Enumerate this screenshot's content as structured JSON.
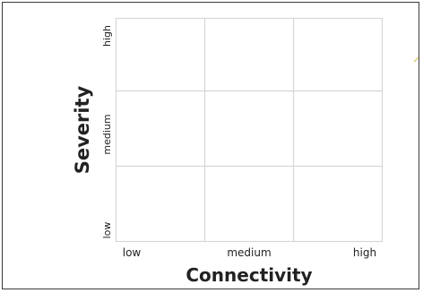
{
  "diagram": {
    "rows": 3,
    "cols": 3,
    "y_axis": {
      "title": "Severity",
      "ticks": [
        "high",
        "medium",
        "low"
      ]
    },
    "x_axis": {
      "title": "Connectivity",
      "ticks": [
        "low",
        "medium",
        "high"
      ]
    },
    "colors": {
      "frame_border": "#3a3a3a",
      "grid_line": "#d6d6d6",
      "text": "#222222",
      "accent_mark": "#d8cc7a"
    }
  }
}
